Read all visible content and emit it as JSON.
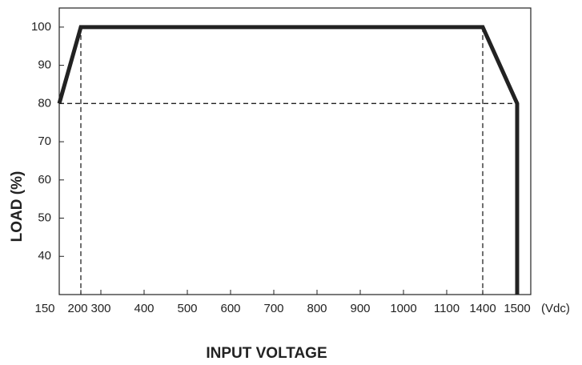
{
  "chart_data": {
    "type": "line",
    "xlabel": "INPUT VOLTAGE",
    "ylabel": "LOAD (%)",
    "x_unit": "(Vdc)",
    "series": [
      {
        "x": [
          150,
          200,
          1400,
          1500,
          1500
        ],
        "values": [
          80,
          100,
          100,
          80,
          30
        ],
        "color": "#222222"
      }
    ],
    "hlines": [
      80
    ],
    "vlines": [
      200,
      1400
    ],
    "xticks": [
      150,
      200,
      300,
      400,
      500,
      600,
      700,
      800,
      900,
      1000,
      1100,
      1400,
      1500
    ],
    "ylim": [
      30,
      105
    ],
    "yticks": [
      40,
      50,
      60,
      70,
      80,
      90,
      100
    ]
  }
}
